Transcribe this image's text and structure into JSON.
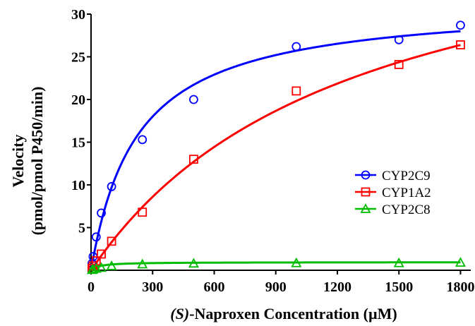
{
  "chart_data": {
    "type": "scatter",
    "title": "",
    "xlabel_prefix": "(S)",
    "xlabel_rest": "-Naproxen Concentration (µM)",
    "ylabel_line1": "Velocity",
    "ylabel_line2": "(pmol/pmol P450/min)",
    "xlim": [
      0,
      1850
    ],
    "ylim": [
      0,
      30
    ],
    "xticks": [
      0,
      300,
      600,
      900,
      1200,
      1500,
      1800
    ],
    "yticks": [
      5,
      10,
      15,
      20,
      25,
      30
    ],
    "grid": false,
    "legend_position": "right",
    "series": [
      {
        "name": "CYP2C9",
        "color": "#0000ff",
        "marker": "circle",
        "x": [
          5,
          10,
          25,
          50,
          100,
          250,
          500,
          1000,
          1500,
          1800
        ],
        "y": [
          0.8,
          1.6,
          3.9,
          6.7,
          9.8,
          15.3,
          20.0,
          26.2,
          27.0,
          28.7
        ],
        "fit": {
          "model": "michaelis-menten",
          "vmax": 31.5,
          "km": 225
        }
      },
      {
        "name": "CYP1A2",
        "color": "#ff0000",
        "marker": "square",
        "x": [
          5,
          10,
          25,
          50,
          100,
          250,
          500,
          1000,
          1500,
          1800
        ],
        "y": [
          0.2,
          0.5,
          1.1,
          1.9,
          3.4,
          6.8,
          13.0,
          21.0,
          24.1,
          26.4
        ],
        "fit": {
          "model": "michaelis-menten",
          "vmax": 45,
          "km": 1270
        }
      },
      {
        "name": "CYP2C8",
        "color": "#00bb00",
        "marker": "triangle",
        "x": [
          5,
          10,
          25,
          50,
          100,
          250,
          500,
          1000,
          1500,
          1800
        ],
        "y": [
          0.05,
          0.1,
          0.2,
          0.3,
          0.5,
          0.7,
          0.8,
          0.85,
          0.85,
          0.9
        ],
        "fit": {
          "model": "michaelis-menten",
          "vmax": 0.95,
          "km": 40
        }
      }
    ]
  }
}
